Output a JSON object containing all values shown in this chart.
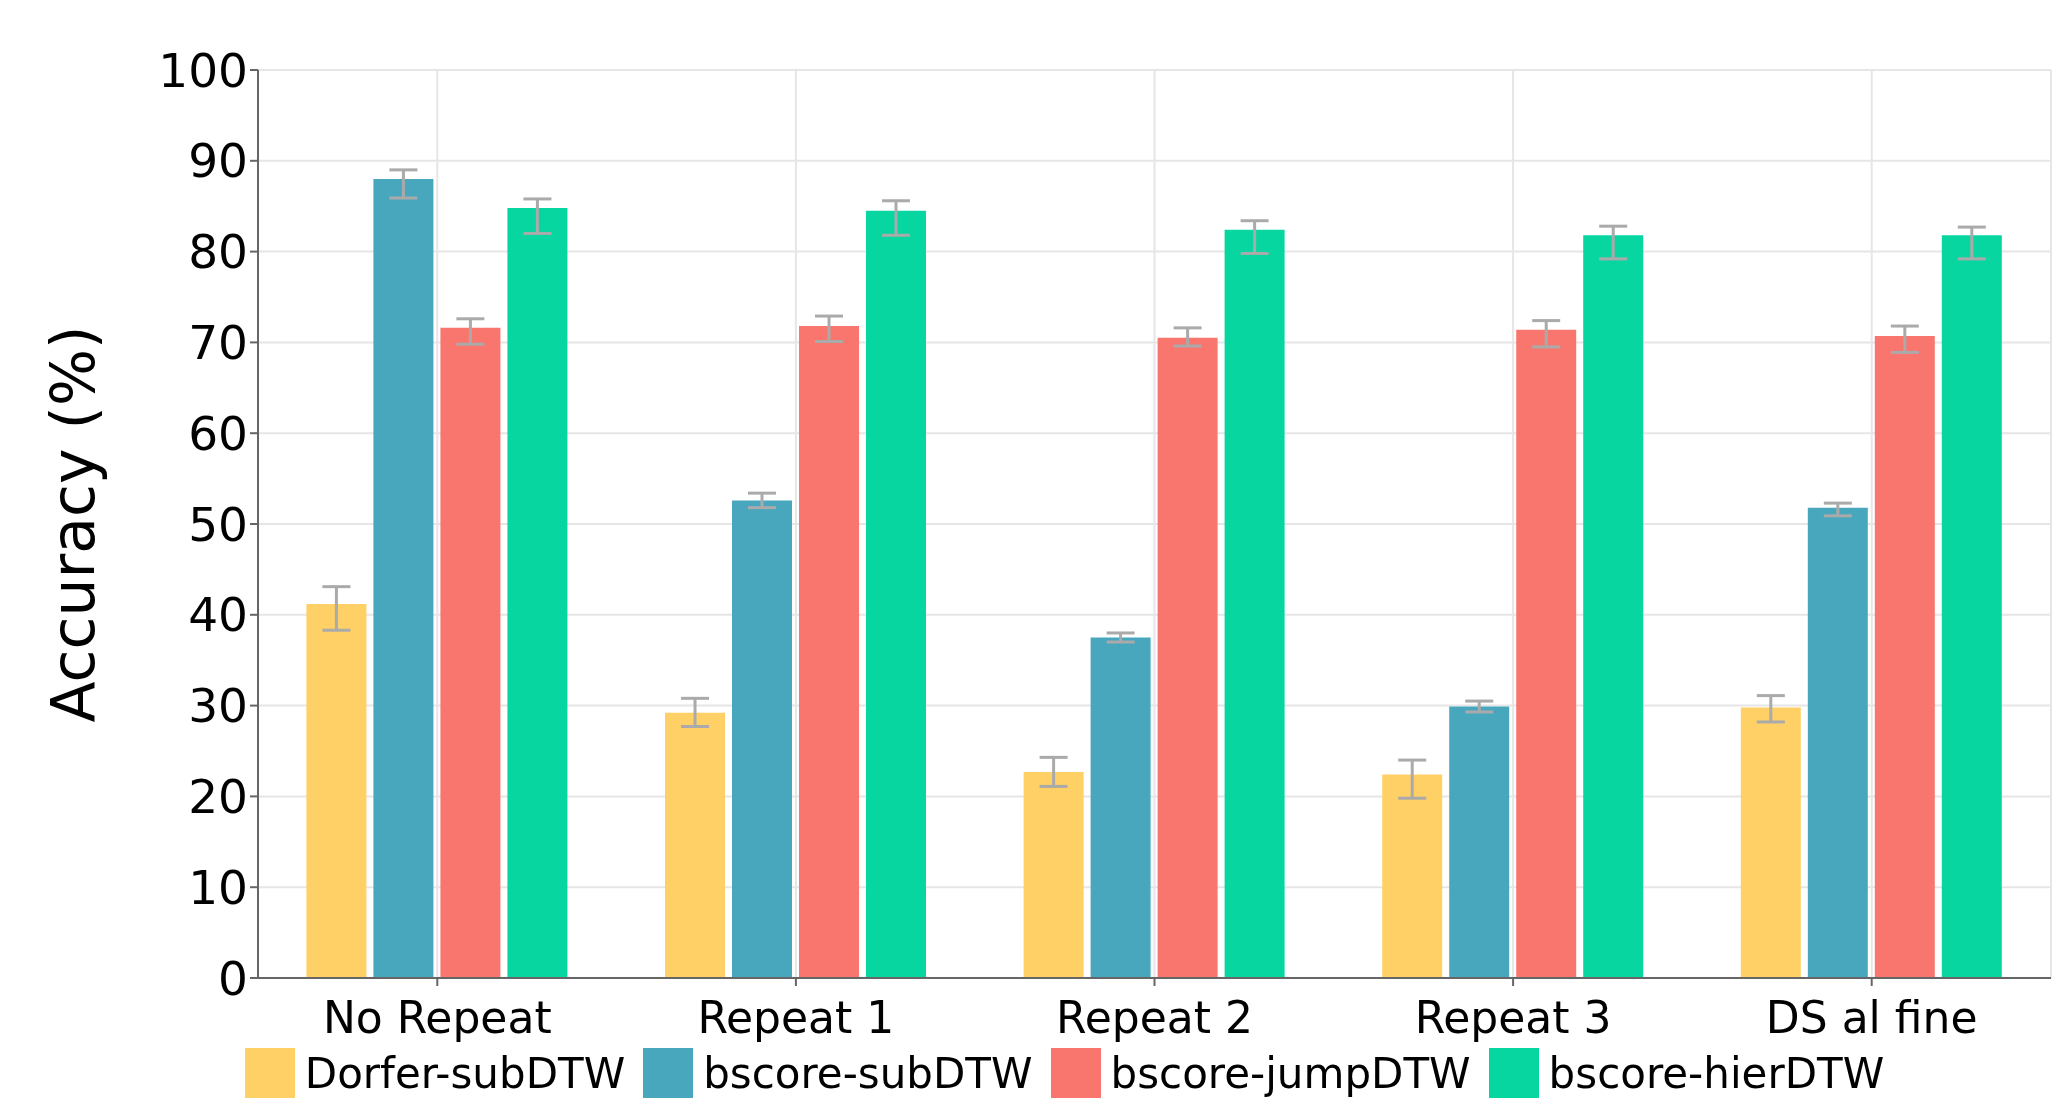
{
  "chart_data": {
    "type": "bar",
    "ylabel": "Accuracy (%)",
    "categories": [
      "No Repeat",
      "Repeat 1",
      "Repeat 2",
      "Repeat 3",
      "DS al fine"
    ],
    "series": [
      {
        "name": "Dorfer-subDTW",
        "color": "#fed066",
        "values": [
          41.2,
          29.2,
          22.7,
          22.4,
          29.8
        ],
        "errors": [
          [
            38.3,
            43.1
          ],
          [
            27.7,
            30.8
          ],
          [
            21.1,
            24.3
          ],
          [
            19.8,
            24.0
          ],
          [
            28.2,
            31.1
          ]
        ]
      },
      {
        "name": "bscore-subDTW",
        "color": "#48a7bd",
        "values": [
          88.0,
          52.6,
          37.5,
          29.9,
          51.8
        ],
        "errors": [
          [
            85.9,
            89.0
          ],
          [
            51.8,
            53.4
          ],
          [
            37.0,
            38.0
          ],
          [
            29.3,
            30.5
          ],
          [
            50.9,
            52.3
          ]
        ]
      },
      {
        "name": "bscore-jumpDTW",
        "color": "#f8766d",
        "values": [
          71.6,
          71.8,
          70.5,
          71.4,
          70.7
        ],
        "errors": [
          [
            69.8,
            72.6
          ],
          [
            70.1,
            72.9
          ],
          [
            69.6,
            71.6
          ],
          [
            69.5,
            72.4
          ],
          [
            68.9,
            71.8
          ]
        ]
      },
      {
        "name": "bscore-hierDTW",
        "color": "#07d6a0",
        "values": [
          84.8,
          84.5,
          82.4,
          81.8,
          81.8
        ],
        "errors": [
          [
            82.0,
            85.8
          ],
          [
            81.8,
            85.6
          ],
          [
            79.8,
            83.4
          ],
          [
            79.2,
            82.8
          ],
          [
            79.2,
            82.7
          ]
        ]
      }
    ],
    "ylim": [
      0,
      100
    ],
    "yticks": [
      0,
      10,
      20,
      30,
      40,
      50,
      60,
      70,
      80,
      90,
      100
    ],
    "grid": true,
    "legend": "bottom"
  }
}
